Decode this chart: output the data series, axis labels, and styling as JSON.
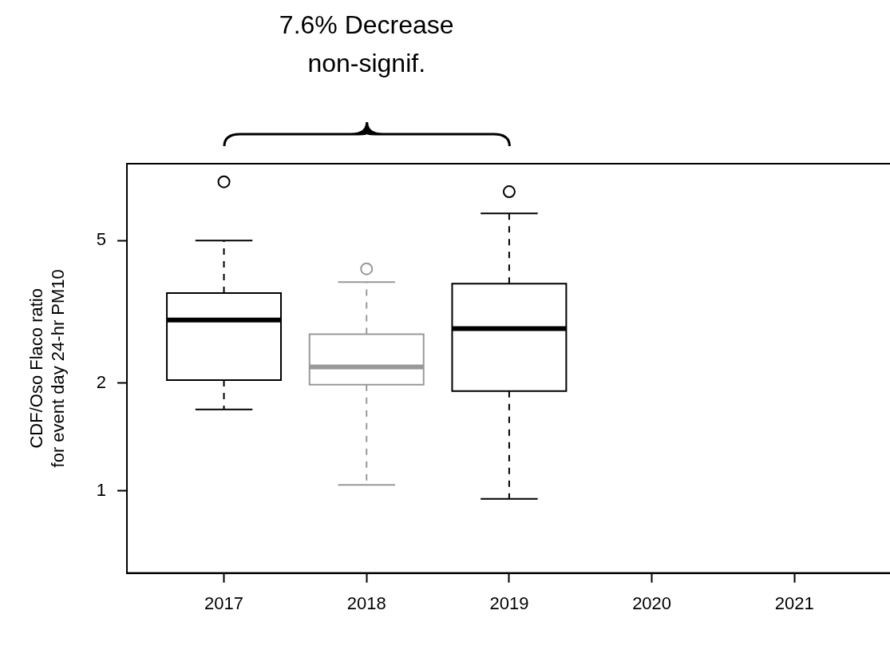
{
  "chart_data": {
    "type": "box",
    "ylabel": "CDF/Oso Flaco ratio\nfor event day 24-hr PM10",
    "categories": [
      "2017",
      "2018",
      "2019",
      "2020",
      "2021"
    ],
    "boxes": [
      {
        "low": 1.69,
        "q1": 2.04,
        "median": 3.0,
        "q3": 3.57,
        "high": 5.0,
        "outliers": [
          7.3
        ]
      },
      {
        "low": 1.04,
        "q1": 1.98,
        "median": 2.22,
        "q3": 2.74,
        "high": 3.83,
        "outliers": [
          4.17
        ]
      },
      {
        "low": 0.95,
        "q1": 1.9,
        "median": 2.84,
        "q3": 3.79,
        "high": 5.96,
        "outliers": [
          6.85
        ]
      },
      null,
      null
    ],
    "colors": [
      "#000000",
      "#999999",
      "#000000",
      null,
      null
    ],
    "log": "y",
    "ylim": [
      0.59,
      8.2
    ],
    "yticks": [
      1,
      2,
      5
    ],
    "grid": false,
    "legend": false,
    "annotations": [
      "7.6% Decrease\nnon-signif."
    ]
  }
}
